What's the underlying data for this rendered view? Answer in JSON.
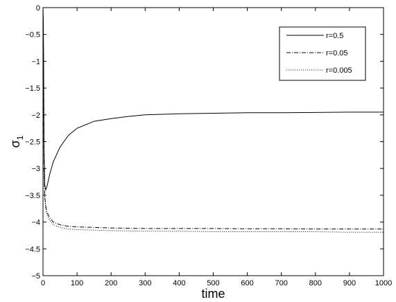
{
  "chart_data": {
    "type": "line",
    "title": "",
    "xlabel": "time",
    "ylabel": "σ",
    "ylabel_subscript": "1",
    "xlim": [
      0,
      1000
    ],
    "ylim": [
      -5,
      0
    ],
    "xticks": [
      0,
      100,
      200,
      300,
      400,
      500,
      600,
      700,
      800,
      900,
      1000
    ],
    "yticks": [
      0,
      -0.5,
      -1,
      -1.5,
      -2,
      -2.5,
      -3,
      -3.5,
      -4,
      -4.5,
      -5
    ],
    "xtick_labels": [
      "0",
      "100",
      "200",
      "300",
      "400",
      "500",
      "600",
      "700",
      "800",
      "900",
      "1000"
    ],
    "ytick_labels": [
      "0",
      "−0.5",
      "−1",
      "−1.5",
      "−2",
      "−2.5",
      "−3",
      "−3.5",
      "−4",
      "−4.5",
      "−5"
    ],
    "grid": false,
    "legend_position": "top-right",
    "series": [
      {
        "name": "r=0.5",
        "style": "solid",
        "color": "#000000",
        "x": [
          0,
          1,
          2,
          3,
          5,
          8,
          12,
          20,
          30,
          50,
          75,
          100,
          150,
          200,
          250,
          300,
          400,
          500,
          600,
          700,
          800,
          900,
          1000
        ],
        "y": [
          0,
          -0.3,
          -1.2,
          -2.6,
          -3.3,
          -3.4,
          -3.33,
          -3.1,
          -2.88,
          -2.6,
          -2.38,
          -2.25,
          -2.12,
          -2.07,
          -2.03,
          -2.0,
          -1.98,
          -1.97,
          -1.96,
          -1.96,
          -1.955,
          -1.95,
          -1.95
        ]
      },
      {
        "name": "r=0.05",
        "style": "dashdot",
        "color": "#000000",
        "x": [
          0,
          1,
          2,
          3,
          5,
          8,
          12,
          20,
          30,
          50,
          75,
          100,
          150,
          200,
          300,
          400,
          500,
          600,
          700,
          800,
          900,
          1000
        ],
        "y": [
          0,
          -0.5,
          -1.6,
          -3.0,
          -3.5,
          -3.7,
          -3.82,
          -3.92,
          -4.0,
          -4.05,
          -4.08,
          -4.09,
          -4.1,
          -4.11,
          -4.12,
          -4.12,
          -4.12,
          -4.125,
          -4.125,
          -4.13,
          -4.13,
          -4.13
        ]
      },
      {
        "name": "r=0.005",
        "style": "dotted",
        "color": "#000000",
        "x": [
          0,
          1,
          2,
          3,
          5,
          8,
          12,
          20,
          30,
          50,
          75,
          100,
          150,
          200,
          300,
          400,
          500,
          600,
          700,
          800,
          900,
          1000
        ],
        "y": [
          0,
          -0.55,
          -1.7,
          -3.1,
          -3.55,
          -3.75,
          -3.87,
          -3.97,
          -4.05,
          -4.1,
          -4.13,
          -4.14,
          -4.15,
          -4.16,
          -4.17,
          -4.17,
          -4.18,
          -4.18,
          -4.18,
          -4.18,
          -4.19,
          -4.19
        ]
      }
    ]
  }
}
